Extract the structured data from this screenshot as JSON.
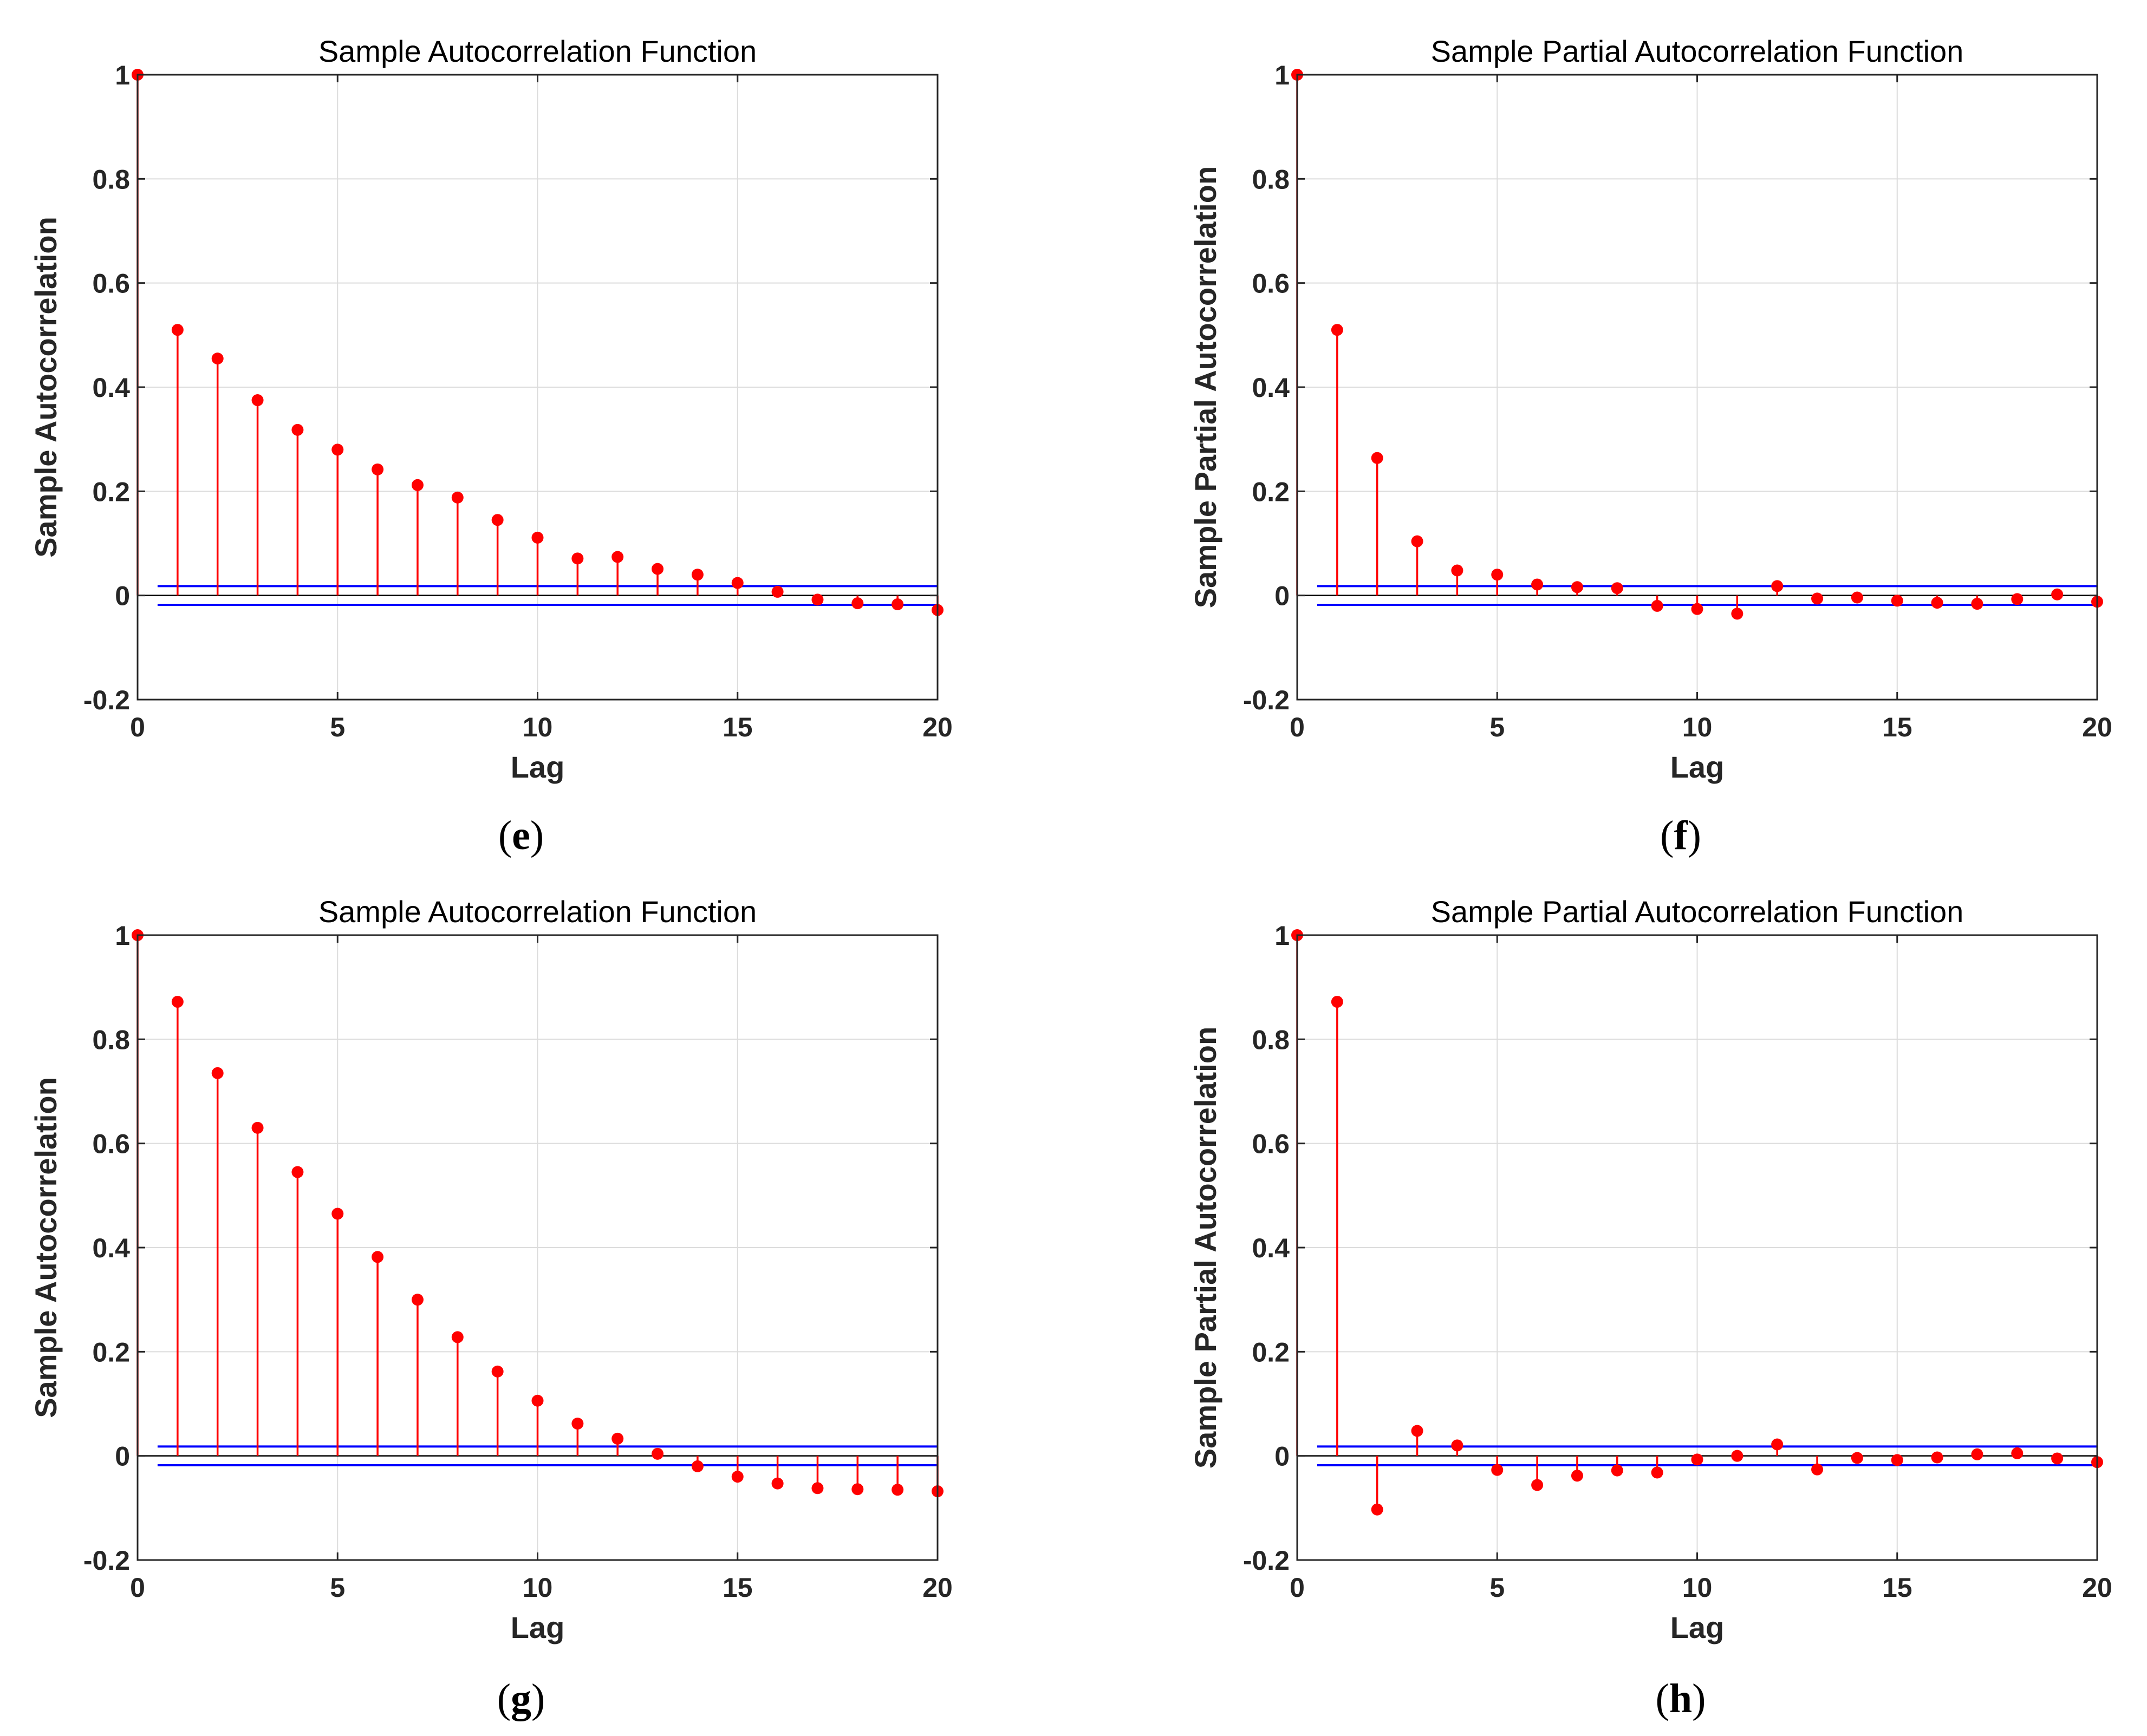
{
  "chart_data": [
    {
      "panel": "e",
      "type": "stem",
      "title": "Sample Autocorrelation Function",
      "xlabel": "Lag",
      "ylabel": "Sample Autocorrelation",
      "xlim": [
        0,
        20
      ],
      "ylim": [
        -0.2,
        1
      ],
      "xticks": [
        0,
        5,
        10,
        15,
        20
      ],
      "yticks": [
        -0.2,
        0,
        0.2,
        0.4,
        0.6,
        0.8,
        1
      ],
      "ytick_labels": [
        "-0.2",
        "0",
        "0.2",
        "0.4",
        "0.6",
        "0.8",
        "1"
      ],
      "grid": true,
      "x": [
        0,
        1,
        2,
        3,
        4,
        5,
        6,
        7,
        8,
        9,
        10,
        11,
        12,
        13,
        14,
        15,
        16,
        17,
        18,
        19,
        20
      ],
      "values": [
        1,
        0.51,
        0.455,
        0.375,
        0.318,
        0.28,
        0.242,
        0.212,
        0.188,
        0.145,
        0.111,
        0.071,
        0.074,
        0.051,
        0.04,
        0.024,
        0.007,
        -0.008,
        -0.015,
        -0.017,
        -0.028
      ],
      "confidence_bounds": [
        0.018,
        -0.018
      ],
      "stem_color": "#ff0000",
      "bound_color": "#0000ff"
    },
    {
      "panel": "f",
      "type": "stem",
      "title": "Sample Partial Autocorrelation Function",
      "xlabel": "Lag",
      "ylabel": "Sample Partial Autocorrelation",
      "xlim": [
        0,
        20
      ],
      "ylim": [
        -0.2,
        1
      ],
      "xticks": [
        0,
        5,
        10,
        15,
        20
      ],
      "yticks": [
        -0.2,
        0,
        0.2,
        0.4,
        0.6,
        0.8,
        1
      ],
      "ytick_labels": [
        "-0.2",
        "0",
        "0.2",
        "0.4",
        "0.6",
        "0.8",
        "1"
      ],
      "grid": true,
      "x": [
        0,
        1,
        2,
        3,
        4,
        5,
        6,
        7,
        8,
        9,
        10,
        11,
        12,
        13,
        14,
        15,
        16,
        17,
        18,
        19,
        20
      ],
      "values": [
        1,
        0.51,
        0.264,
        0.104,
        0.048,
        0.04,
        0.021,
        0.016,
        0.014,
        -0.02,
        -0.026,
        -0.035,
        0.018,
        -0.006,
        -0.004,
        -0.01,
        -0.014,
        -0.016,
        -0.007,
        0.002,
        -0.012
      ],
      "confidence_bounds": [
        0.018,
        -0.018
      ],
      "stem_color": "#ff0000",
      "bound_color": "#0000ff"
    },
    {
      "panel": "g",
      "type": "stem",
      "title": "Sample Autocorrelation Function",
      "xlabel": "Lag",
      "ylabel": "Sample Autocorrelation",
      "xlim": [
        0,
        20
      ],
      "ylim": [
        -0.2,
        1
      ],
      "xticks": [
        0,
        5,
        10,
        15,
        20
      ],
      "yticks": [
        -0.2,
        0,
        0.2,
        0.4,
        0.6,
        0.8,
        1
      ],
      "ytick_labels": [
        "-0.2",
        "0",
        "0.2",
        "0.4",
        "0.6",
        "0.8",
        "1"
      ],
      "grid": true,
      "x": [
        0,
        1,
        2,
        3,
        4,
        5,
        6,
        7,
        8,
        9,
        10,
        11,
        12,
        13,
        14,
        15,
        16,
        17,
        18,
        19,
        20
      ],
      "values": [
        1,
        0.872,
        0.735,
        0.63,
        0.545,
        0.465,
        0.382,
        0.3,
        0.228,
        0.162,
        0.106,
        0.062,
        0.033,
        0.004,
        -0.02,
        -0.04,
        -0.053,
        -0.062,
        -0.064,
        -0.065,
        -0.068
      ],
      "confidence_bounds": [
        0.018,
        -0.018
      ],
      "stem_color": "#ff0000",
      "bound_color": "#0000ff"
    },
    {
      "panel": "h",
      "type": "stem",
      "title": "Sample Partial Autocorrelation Function",
      "xlabel": "Lag",
      "ylabel": "Sample Partial Autocorrelation",
      "xlim": [
        0,
        20
      ],
      "ylim": [
        -0.2,
        1
      ],
      "xticks": [
        0,
        5,
        10,
        15,
        20
      ],
      "yticks": [
        -0.2,
        0,
        0.2,
        0.4,
        0.6,
        0.8,
        1
      ],
      "ytick_labels": [
        "-0.2",
        "0",
        "0.2",
        "0.4",
        "0.6",
        "0.8",
        "1"
      ],
      "grid": true,
      "x": [
        0,
        1,
        2,
        3,
        4,
        5,
        6,
        7,
        8,
        9,
        10,
        11,
        12,
        13,
        14,
        15,
        16,
        17,
        18,
        19,
        20
      ],
      "values": [
        1,
        0.872,
        -0.103,
        0.048,
        0.02,
        -0.027,
        -0.056,
        -0.038,
        -0.028,
        -0.032,
        -0.007,
        0.0,
        0.022,
        -0.026,
        -0.004,
        -0.008,
        -0.003,
        0.003,
        0.005,
        -0.005,
        -0.012
      ],
      "confidence_bounds": [
        0.018,
        -0.018
      ],
      "stem_color": "#ff0000",
      "bound_color": "#0000ff"
    }
  ],
  "panel_labels": [
    "(e)",
    "(f)",
    "(g)",
    "(h)"
  ]
}
